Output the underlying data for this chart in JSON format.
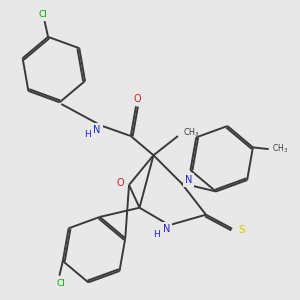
{
  "bg": "#e8e8e8",
  "bond_color": "#3a3a3a",
  "colors": {
    "C": "#3a3a3a",
    "N": "#2222cc",
    "O": "#cc2222",
    "S": "#cccc00",
    "Cl": "#00aa00"
  },
  "lw": 1.4,
  "dbo": 0.05
}
